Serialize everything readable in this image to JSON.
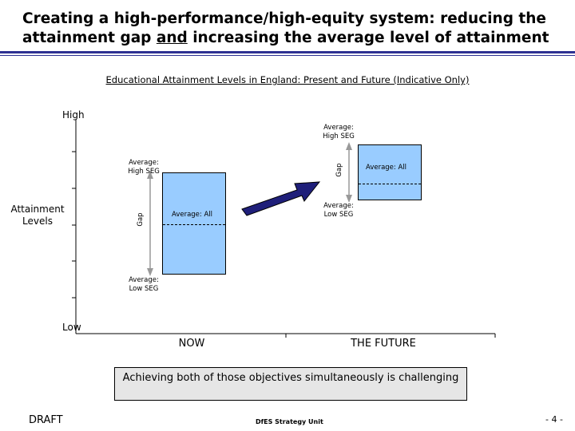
{
  "title": {
    "line1": "Creating a high-performance/high-equity system: reducing the",
    "line2_pre": "attainment gap ",
    "line2_u": "and",
    "line2_post": " increasing the average level of attainment"
  },
  "subtitle": "Educational Attainment Levels in England: Present and Future (Indicative Only)",
  "axis": {
    "high": "High",
    "low": "Low",
    "ylabel_line1": "Attainment",
    "ylabel_line2": "Levels"
  },
  "now": {
    "category": "NOW",
    "high_seg_line1": "Average:",
    "high_seg_line2": "High SEG",
    "low_seg_line1": "Average:",
    "low_seg_line2": "Low SEG",
    "avg_all": "Average: All",
    "gap": "Gap"
  },
  "future": {
    "category": "THE FUTURE",
    "high_seg_line1": "Average:",
    "high_seg_line2": "High SEG",
    "low_seg_line1": "Average:",
    "low_seg_line2": "Low SEG",
    "avg_all": "Average: All",
    "gap": "Gap"
  },
  "callout": "Achieving both of those objectives simultaneously is challenging",
  "footer": {
    "draft": "DRAFT",
    "unit": "DfES Strategy Unit",
    "page": "- 4 -"
  },
  "colors": {
    "bar_fill": "#99ccff",
    "arrow": "#1f1f7a",
    "rule": "#2e3192",
    "callout_bg": "#e6e6e6"
  }
}
